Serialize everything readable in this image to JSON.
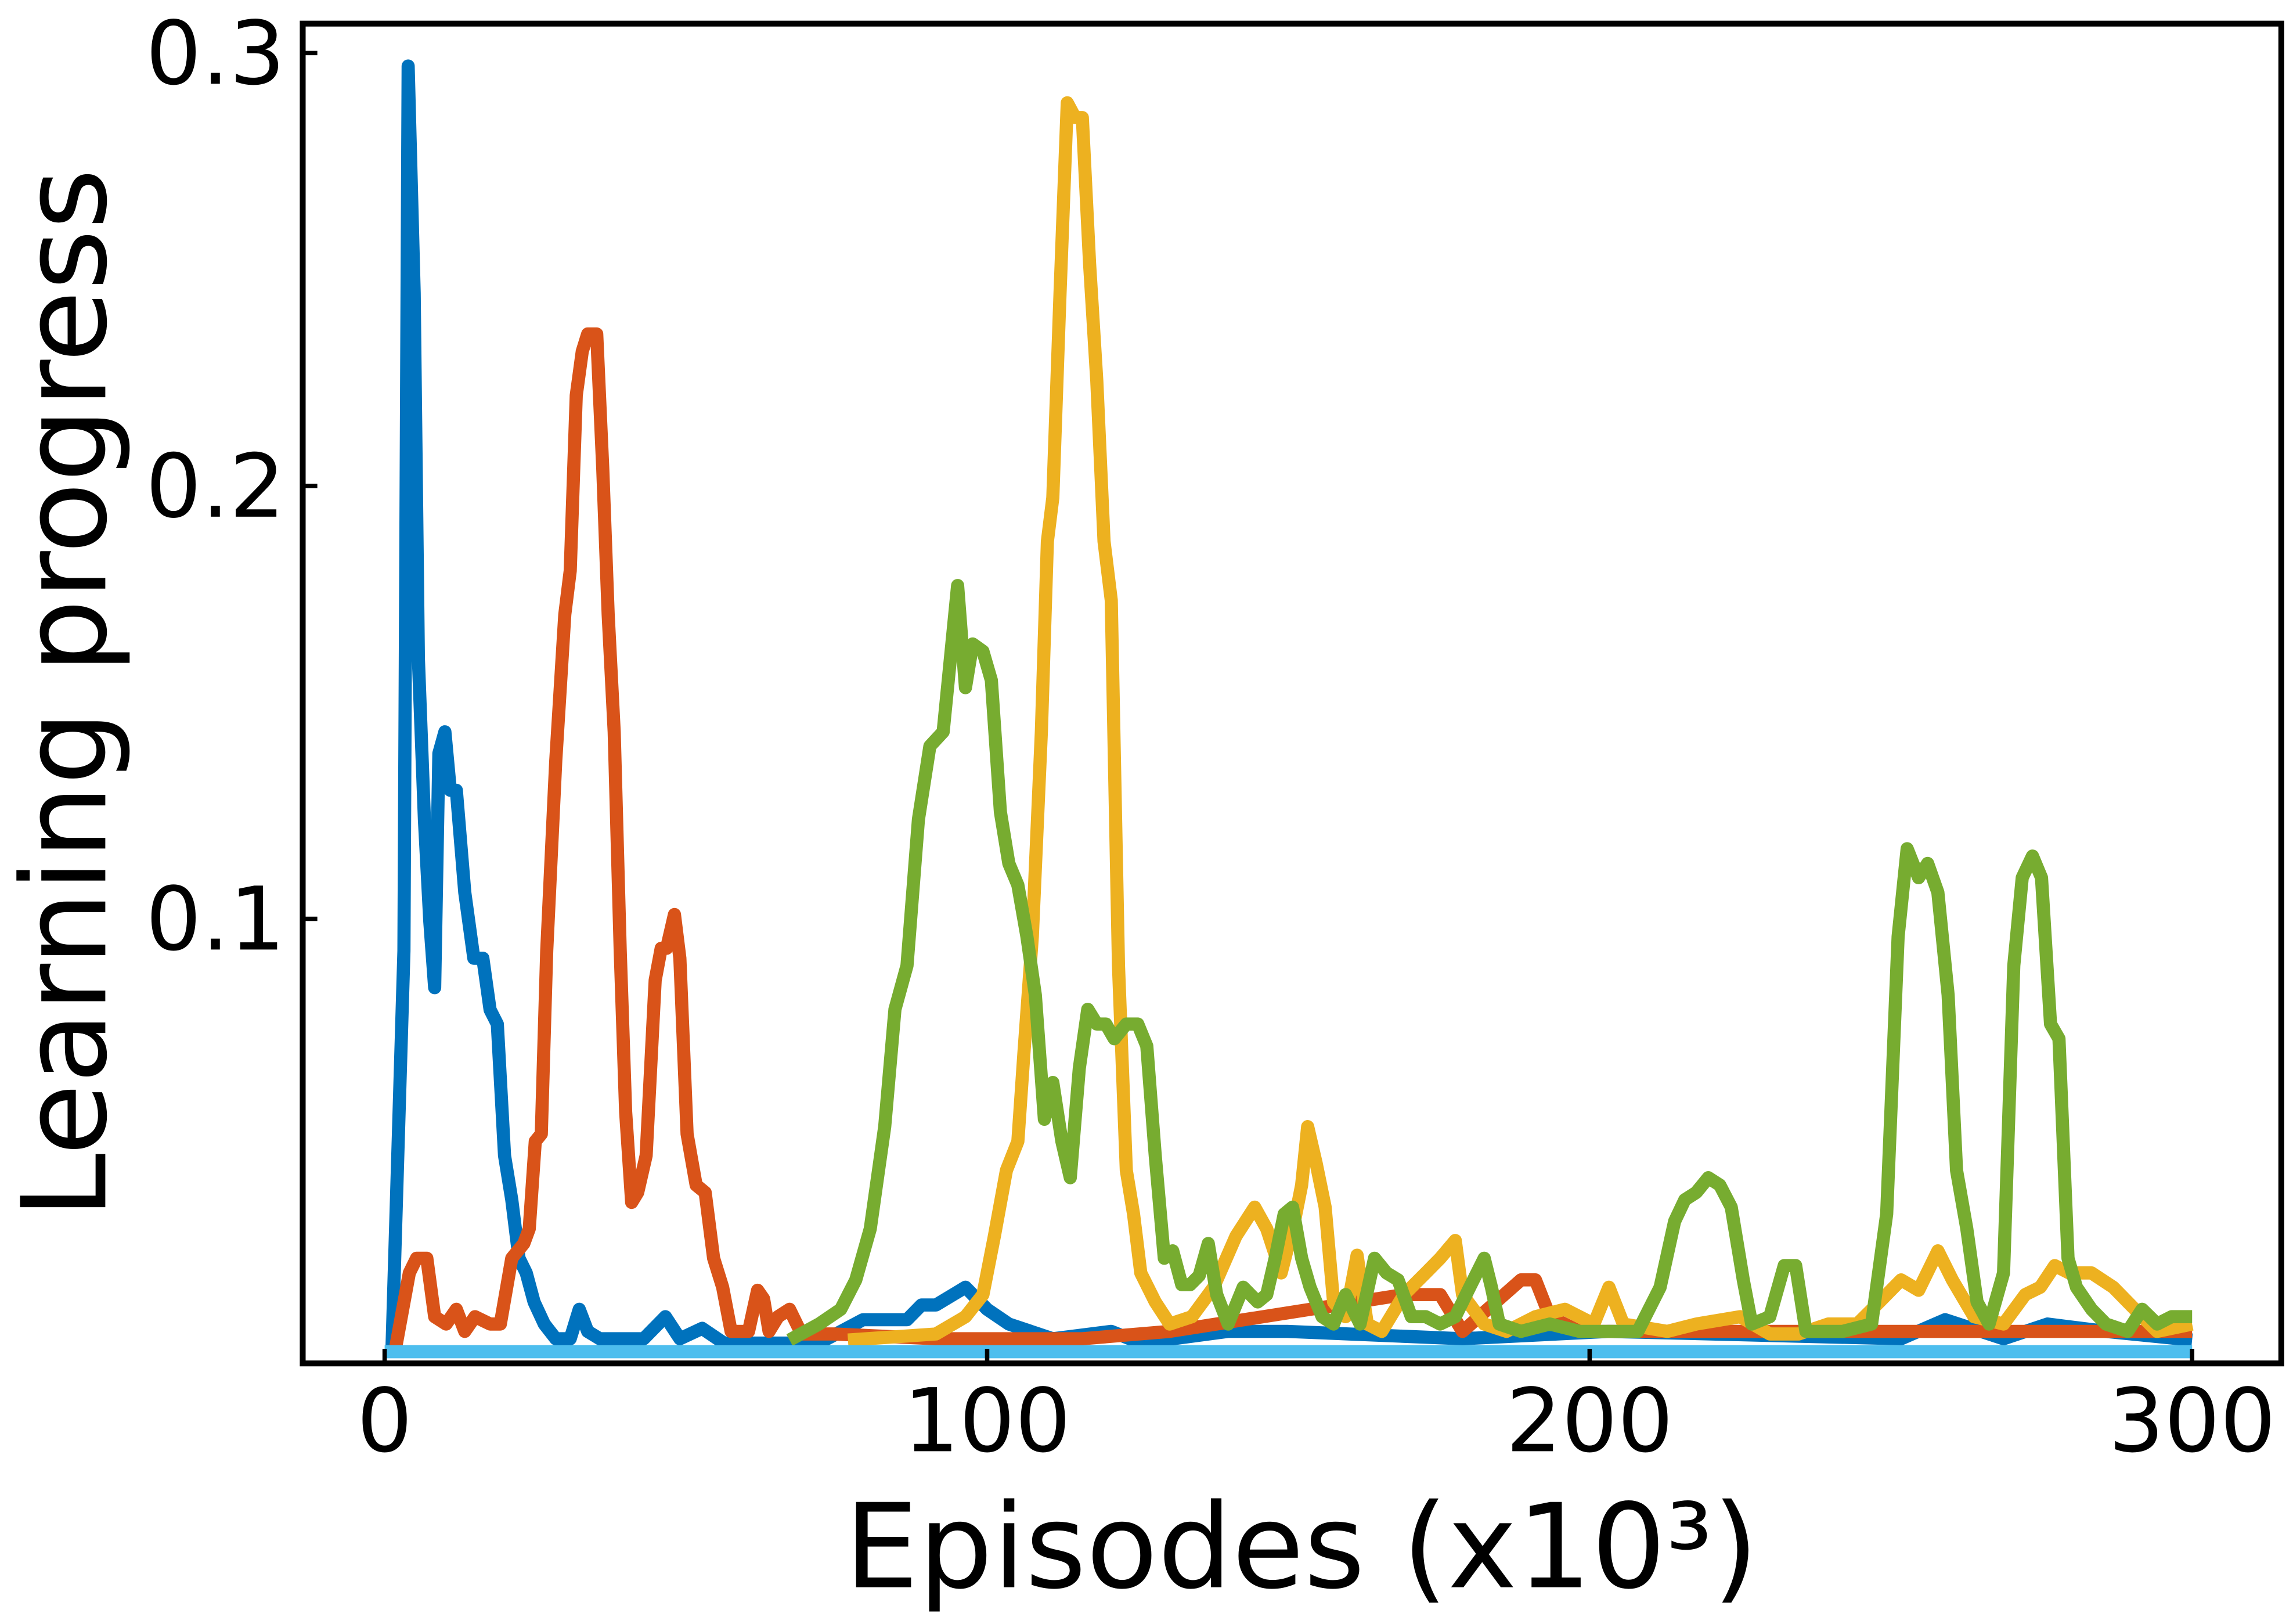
{
  "chart_data": {
    "type": "line",
    "xlabel": "Episodes (x10³)",
    "ylabel": "Learning progress",
    "xlim": [
      -13.6,
      314.8
    ],
    "ylim": [
      -0.0027,
      0.3068
    ],
    "xticks": [
      0,
      100,
      200,
      300
    ],
    "yticks": [
      0.1,
      0.2,
      0.3
    ],
    "grid": false,
    "series": [
      {
        "color": "#0072bd",
        "x": [
          1.2,
          3.2,
          3.9,
          4.9,
          5.6,
          6.6,
          7.5,
          8.3,
          9.0,
          10.0,
          10.9,
          11.9,
          13.3,
          14.8,
          16.3,
          17.5,
          18.7,
          19.9,
          21.1,
          22.3,
          23.5,
          24.8,
          26.5,
          28.4,
          30.8,
          32.3,
          33.7,
          35.7,
          40.5,
          43,
          46.6,
          49,
          52.7,
          56.3,
          62.4,
          72.1,
          79.4,
          81.8,
          86.7,
          89.1,
          91.5,
          96.4,
          100,
          103.6,
          110.9,
          120.6,
          125.5,
          140,
          149.8,
          178.9,
          203.2,
          251.7,
          259,
          268.7,
          276,
          285.7,
          300
        ],
        "values": [
          0,
          0.0926,
          0.297,
          0.2446,
          0.1601,
          0.123,
          0.0993,
          0.0841,
          0.1382,
          0.1432,
          0.1297,
          0.1297,
          0.1061,
          0.0909,
          0.0909,
          0.079,
          0.0757,
          0.0453,
          0.0351,
          0.0216,
          0.0182,
          0.0115,
          0.0064,
          0.003,
          0.003,
          0.0098,
          0.0047,
          0.003,
          0.003,
          0.003,
          0.0081,
          0.003,
          0.0054,
          0.002,
          0.002,
          0.002,
          0.0074,
          0.0074,
          0.0074,
          0.0108,
          0.0108,
          0.0149,
          0.0098,
          0.0064,
          0.003,
          0.0047,
          0.002,
          0.0047,
          0.0047,
          0.003,
          0.0047,
          0.003,
          0.0074,
          0.003,
          0.0064,
          0.0047,
          0.0027
        ]
      },
      {
        "color": "#d95319",
        "x": [
          1.7,
          4.1,
          5.3,
          7.0,
          8.3,
          10.2,
          11.9,
          13.3,
          15,
          17.5,
          19.2,
          21.1,
          23.1,
          24,
          25,
          26,
          26.9,
          28.4,
          29.9,
          30.8,
          31.8,
          32.8,
          33.7,
          35.2,
          36.2,
          37.1,
          38.1,
          39.1,
          40,
          41,
          42,
          43.4,
          44.9,
          45.9,
          46.8,
          48.1,
          49,
          50.2,
          51.7,
          53.2,
          54.6,
          56.1,
          57.5,
          60.4,
          61.9,
          62.9,
          63.8,
          65.3,
          67.2,
          69.2,
          74.5,
          91.5,
          115.8,
          130.3,
          169.2,
          175.2,
          178.9,
          188.6,
          191,
          193.4,
          198.3,
          239.6,
          300
        ],
        "values": [
          0,
          0.0182,
          0.0216,
          0.0216,
          0.0081,
          0.0064,
          0.0098,
          0.0047,
          0.0081,
          0.0064,
          0.0064,
          0.0216,
          0.025,
          0.0284,
          0.0486,
          0.0503,
          0.0926,
          0.1365,
          0.1703,
          0.1804,
          0.2209,
          0.2311,
          0.2351,
          0.2351,
          0.2041,
          0.1703,
          0.1432,
          0.0926,
          0.0554,
          0.0345,
          0.0368,
          0.0453,
          0.0858,
          0.0932,
          0.0932,
          0.101,
          0.0909,
          0.0503,
          0.0385,
          0.0368,
          0.0216,
          0.0149,
          0.0047,
          0.0047,
          0.0142,
          0.0122,
          0.0047,
          0.0081,
          0.0098,
          0.0041,
          0.0041,
          0.003,
          0.003,
          0.0047,
          0.0132,
          0.0132,
          0.0047,
          0.0166,
          0.0166,
          0.0081,
          0.0047,
          0.0047,
          0.0047
        ]
      },
      {
        "color": "#edb120",
        "x": [
          76.9,
          91.5,
          96.4,
          99.3,
          101.2,
          103.2,
          105.1,
          106.1,
          107.5,
          109,
          110,
          110.9,
          112.1,
          113.3,
          114.6,
          115.8,
          117,
          118.2,
          119.4,
          120.6,
          121.8,
          123.1,
          124.3,
          125.5,
          127.9,
          130.3,
          134,
          137.6,
          141.3,
          144.4,
          146.4,
          148.8,
          151,
          152.2,
          153.2,
          154.6,
          156.1,
          157.5,
          159.5,
          161.4,
          163.1,
          165.5,
          169.2,
          172.8,
          175.2,
          177.7,
          178.9,
          182.5,
          186.2,
          191,
          195.9,
          200.7,
          203.2,
          205.6,
          212.9,
          217.7,
          225,
          229.9,
          234.7,
          239.6,
          244.4,
          248.1,
          251.7,
          254.6,
          257.8,
          260.2,
          263.8,
          268.7,
          272.3,
          274.8,
          277.2,
          279.6,
          283.3,
          286.9,
          290.5,
          294.2,
          300
        ],
        "values": [
          0.0027,
          0.0041,
          0.0081,
          0.0132,
          0.0267,
          0.0419,
          0.0486,
          0.0689,
          0.0959,
          0.1432,
          0.1872,
          0.1973,
          0.2446,
          0.2885,
          0.2851,
          0.2851,
          0.2514,
          0.2243,
          0.1872,
          0.1736,
          0.0892,
          0.0419,
          0.0318,
          0.0182,
          0.0115,
          0.0064,
          0.0081,
          0.0149,
          0.0267,
          0.0334,
          0.0284,
          0.0182,
          0.0301,
          0.0385,
          0.052,
          0.0436,
          0.0334,
          0.0115,
          0.0081,
          0.0223,
          0.0064,
          0.0047,
          0.0132,
          0.0182,
          0.0216,
          0.0257,
          0.0132,
          0.0064,
          0.0047,
          0.0081,
          0.0098,
          0.0064,
          0.0149,
          0.0064,
          0.0047,
          0.0064,
          0.0081,
          0.0041,
          0.0041,
          0.0064,
          0.0064,
          0.0115,
          0.0166,
          0.0142,
          0.0233,
          0.0166,
          0.0081,
          0.0064,
          0.0132,
          0.0149,
          0.0199,
          0.0182,
          0.0182,
          0.0149,
          0.0098,
          0.0047,
          0.0064
        ]
      },
      {
        "color": "#77ac30",
        "x": [
          67.2,
          72.1,
          75.7,
          78.2,
          80.6,
          83,
          84.7,
          86.7,
          88.6,
          90.5,
          92.7,
          93.9,
          95.1,
          96.4,
          97.6,
          99.3,
          100.7,
          102.2,
          103.6,
          105.1,
          106.6,
          108,
          109.5,
          110.9,
          112.4,
          113.8,
          115.3,
          116.7,
          118.2,
          119.7,
          121.1,
          123.1,
          125,
          126.5,
          127.9,
          129.4,
          130.8,
          132.3,
          133.7,
          135.2,
          136.7,
          138.1,
          140,
          142.5,
          144.9,
          146.4,
          147.8,
          149.3,
          150.7,
          152.2,
          153.6,
          155.6,
          157.5,
          159.5,
          161.9,
          164.3,
          166.3,
          168.2,
          170.4,
          172.8,
          175.2,
          177.7,
          180.1,
          182.5,
          183.7,
          185,
          188.6,
          193.4,
          198.3,
          203.2,
          208,
          211.7,
          214.1,
          215.8,
          217.7,
          219.7,
          221.6,
          223.5,
          225.5,
          226.9,
          229.9,
          232.3,
          234.2,
          235.9,
          242,
          246.8,
          249.3,
          251.2,
          252.7,
          254.6,
          256.1,
          257.8,
          259.5,
          260.9,
          262.6,
          264.3,
          266.3,
          268.7,
          270.4,
          271.8,
          273.5,
          275,
          276.5,
          277.9,
          279.4,
          280.8,
          283.3,
          285.7,
          289.3,
          291.7,
          294.2,
          296.6,
          300
        ],
        "values": [
          0.0027,
          0.0064,
          0.0098,
          0.0166,
          0.0284,
          0.052,
          0.0791,
          0.0892,
          0.123,
          0.1399,
          0.1432,
          0.1601,
          0.177,
          0.1534,
          0.1635,
          0.1618,
          0.1551,
          0.1247,
          0.1128,
          0.1078,
          0.0959,
          0.0824,
          0.0537,
          0.0622,
          0.0486,
          0.0402,
          0.0655,
          0.0791,
          0.0757,
          0.0757,
          0.0723,
          0.0757,
          0.0757,
          0.0706,
          0.0453,
          0.0216,
          0.0233,
          0.0155,
          0.0155,
          0.0176,
          0.025,
          0.0132,
          0.0064,
          0.0149,
          0.0115,
          0.0132,
          0.0216,
          0.0318,
          0.0334,
          0.0216,
          0.0149,
          0.0081,
          0.0064,
          0.0132,
          0.0064,
          0.0216,
          0.0182,
          0.0166,
          0.0081,
          0.0081,
          0.0064,
          0.0081,
          0.0149,
          0.0216,
          0.0149,
          0.0064,
          0.0047,
          0.0064,
          0.0047,
          0.0047,
          0.0047,
          0.0149,
          0.0301,
          0.0351,
          0.0368,
          0.0402,
          0.0385,
          0.0334,
          0.0166,
          0.0064,
          0.0081,
          0.0199,
          0.0199,
          0.0047,
          0.0047,
          0.0064,
          0.0318,
          0.0959,
          0.1162,
          0.1095,
          0.1128,
          0.1061,
          0.0824,
          0.0419,
          0.0284,
          0.0115,
          0.0064,
          0.0182,
          0.0892,
          0.1095,
          0.1145,
          0.1095,
          0.0757,
          0.0723,
          0.0216,
          0.0149,
          0.0098,
          0.0064,
          0.0047,
          0.0098,
          0.0064,
          0.0081,
          0.0081
        ]
      },
      {
        "color": "#4dbeee",
        "x": [
          0,
          300
        ],
        "values": [
          0,
          0
        ]
      }
    ]
  }
}
